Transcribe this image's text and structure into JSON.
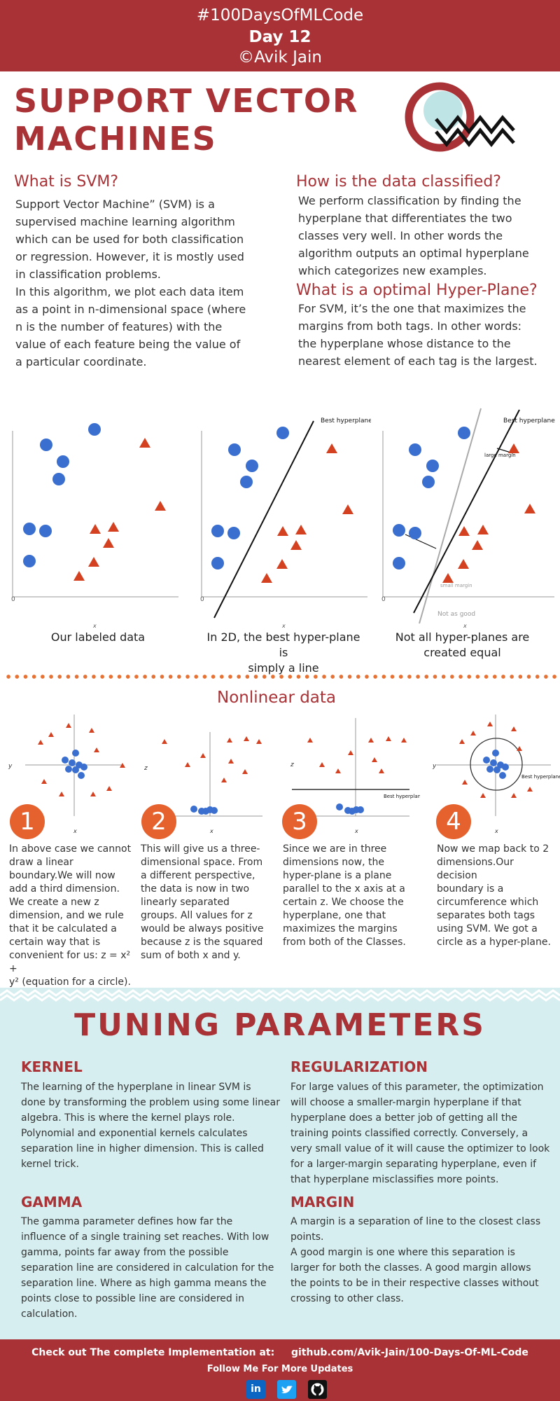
{
  "header": {
    "hashtag": "#100DaysOfMLCode",
    "day": "Day 12",
    "author": "©Avik Jain"
  },
  "title": {
    "line1": "SUPPORT VECTOR",
    "line2": "MACHINES"
  },
  "what_is_svm": {
    "heading": "What is SVM?",
    "lines": [
      "Support Vector Machine” (SVM) is a",
      "supervised machine learning algorithm",
      "which can be used for both classification",
      "or regression. However,  it is mostly used",
      "in classification problems.",
      "In this algorithm, we plot each data item",
      "as a point in n-dimensional space (where",
      "n is the number of features) with the",
      "value of each feature being the value of",
      "a particular coordinate."
    ]
  },
  "how_classified": {
    "heading": "How is the data classified?",
    "lines": [
      "We perform classification by finding the",
      "hyperplane that differentiates the two",
      "classes very well. In other words the",
      "algorithm outputs an optimal hyperplane",
      "which categorizes new examples."
    ]
  },
  "optimal": {
    "heading": "What is a optimal Hyper-Plane?",
    "lines": [
      "For SVM, it’s the one that maximizes the",
      "margins from both tags. In other words:",
      "the hyperplane whose distance to the",
      "nearest element of each tag is the largest."
    ]
  },
  "panels": {
    "p1_caption": "Our labeled data",
    "p2_caption_1": "In 2D, the best hyper-plane is",
    "p2_caption_2": "simply a line",
    "p3_caption_1": "Not all hyper-planes are",
    "p3_caption_2": "created equal",
    "best_hyperplane": "Best hyperplane",
    "large_margin": "large margin",
    "small_margin": "small margin",
    "not_as_good": "Not as good",
    "axis_origin": "0",
    "axis_x": "x"
  },
  "nonlinear": {
    "title": "Nonlinear data",
    "axis_x": "x",
    "axis_y": "y",
    "axis_z": "z",
    "best_hyperplane": "Best hyperplane",
    "steps": [
      {
        "num": "1",
        "lines": [
          "In above case we cannot",
          "draw a linear",
          "boundary.We will now",
          "add a third dimension.",
          "We create a new z",
          "dimension, and we rule",
          "that it be calculated a",
          "certain way that is",
          "convenient for us: z = x² +",
          "y² (equation for a circle)."
        ]
      },
      {
        "num": "2",
        "lines": [
          "This will give us a three-",
          "dimensional space. From",
          "a different perspective,",
          "the data is now in two",
          "linearly separated",
          "groups. All values for z",
          "would be always positive",
          "because z is the squared",
          "sum of both x and y."
        ]
      },
      {
        "num": "3",
        "lines": [
          "Since we are in three",
          "dimensions now, the",
          "hyper-plane is a plane",
          "parallel to the x axis at a",
          "certain z. We choose the",
          "hyperplane, one that",
          "maximizes the margins",
          "from both of the Classes."
        ]
      },
      {
        "num": "4",
        "lines": [
          "Now we map back to 2",
          "dimensions.Our decision",
          "boundary is a",
          "circumference which",
          "separates both tags",
          "using SVM. We got a",
          "circle as a hyper-plane."
        ]
      }
    ]
  },
  "tuning": {
    "title": "TUNING PARAMETERS",
    "kernel": {
      "heading": "KERNEL",
      "lines": [
        "The learning of the hyperplane in linear SVM is",
        "done by transforming the problem using some linear",
        "algebra. This is where the kernel plays role.",
        "Polynomial and exponential kernels calculates",
        "separation line in higher dimension. This is called",
        "kernel trick."
      ]
    },
    "regularization": {
      "heading": "REGULARIZATION",
      "lines": [
        "For large values of this parameter, the optimization",
        "will choose a smaller-margin hyperplane if that",
        "hyperplane does a better job of getting all the",
        "training points classified correctly. Conversely, a",
        "very small value of it will cause the optimizer to look",
        "for a larger-margin separating hyperplane, even if",
        "that hyperplane misclassifies more points."
      ]
    },
    "gamma": {
      "heading": "GAMMA",
      "lines": [
        "The gamma parameter defines how far the",
        "influence of a single training set reaches. With low",
        "gamma, points far away from the possible",
        "separation line are considered in calculation for the",
        "separation line. Where as high gamma means the",
        "points close to possible line are considered in",
        "calculation."
      ]
    },
    "margin": {
      "heading": "MARGIN",
      "lines": [
        "A margin is a separation of line to the closest class",
        "points.",
        "A good margin is one where this separation is",
        "larger for both the classes. A good margin allows",
        "the points to be in their respective classes without",
        "crossing to other class."
      ]
    }
  },
  "footer": {
    "check_out": "Check out The complete Implementation at:",
    "link": "github.com/Avik-Jain/100-Days-Of-ML-Code",
    "follow": "Follow Me For More Updates",
    "icons": [
      "linkedin-icon",
      "twitter-icon",
      "github-icon"
    ],
    "linkedin_label": "in"
  },
  "colors": {
    "brand_red": "#a83236",
    "orange": "#e5612e",
    "blue": "#3a6fcf",
    "tri_red": "#d44121",
    "tuning_bg": "#d6eeef"
  }
}
